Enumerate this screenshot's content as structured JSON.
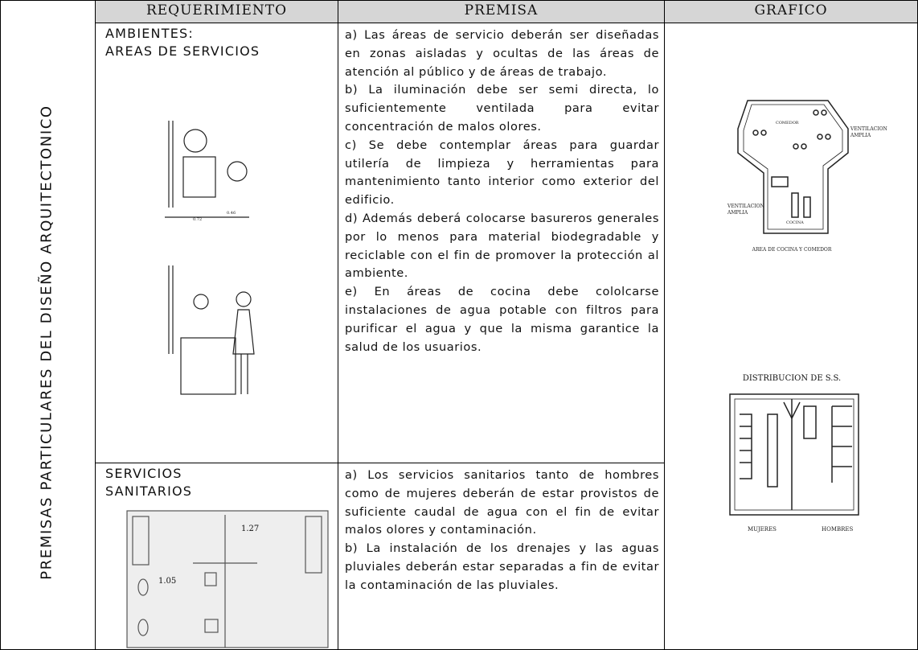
{
  "side_label": "PREMISAS PARTICULARES DEL DISEÑO ARQUITECTONICO",
  "table": {
    "headers": [
      "REQUERIMIENTO",
      "PREMISA",
      "GRAFICO"
    ],
    "rows": [
      {
        "requirement": [
          "AMBIENTES:",
          "AREAS DE SERVICIOS"
        ],
        "premises": [
          "a) Las áreas de servicio deberán ser diseñadas en zonas aisladas y ocultas de las áreas de atención al público y de áreas de trabajo.",
          "b) La iluminación debe ser semi directa, lo suficientemente ventilada para evitar concentración de malos olores.",
          "c) Se debe contemplar áreas para guardar utilería de limpieza y herramientas para mantenimiento tanto interior como exterior del edificio.",
          "d) Además deberá colocarse basureros generales por lo menos para material biodegradable y reciclable con el fin de promover la protección al ambiente.",
          "e) En áreas de cocina debe cololcarse instalaciones de agua potable con filtros para purificar el agua y que la misma garantice la salud de los usuarios."
        ],
        "drawing_labels": [
          "0.72",
          "0.46"
        ],
        "graphic": {
          "labels": [
            "COMEDOR",
            "VENTILACION",
            "AMPLIA",
            "VENTILACION",
            "AMPLIA",
            "COCINA"
          ],
          "caption": "AREA DE COCINA Y COMEDOR",
          "title2": "DISTRIBUCION DE S.S.",
          "labels2": [
            "MUJERES",
            "HOMBRES"
          ]
        }
      },
      {
        "requirement": [
          "SERVICIOS",
          "SANITARIOS"
        ],
        "premises": [
          "a) Los servicios sanitarios tanto de hombres como de mujeres deberán de estar provistos de suficiente caudal de agua con el fin de evitar malos olores y contaminación.",
          "b) La instalación de los drenajes y las aguas pluviales deberán estar separadas a fin de evitar la contaminación de las pluviales."
        ],
        "drawing_labels": [
          "1.05",
          "1.27"
        ]
      }
    ]
  }
}
